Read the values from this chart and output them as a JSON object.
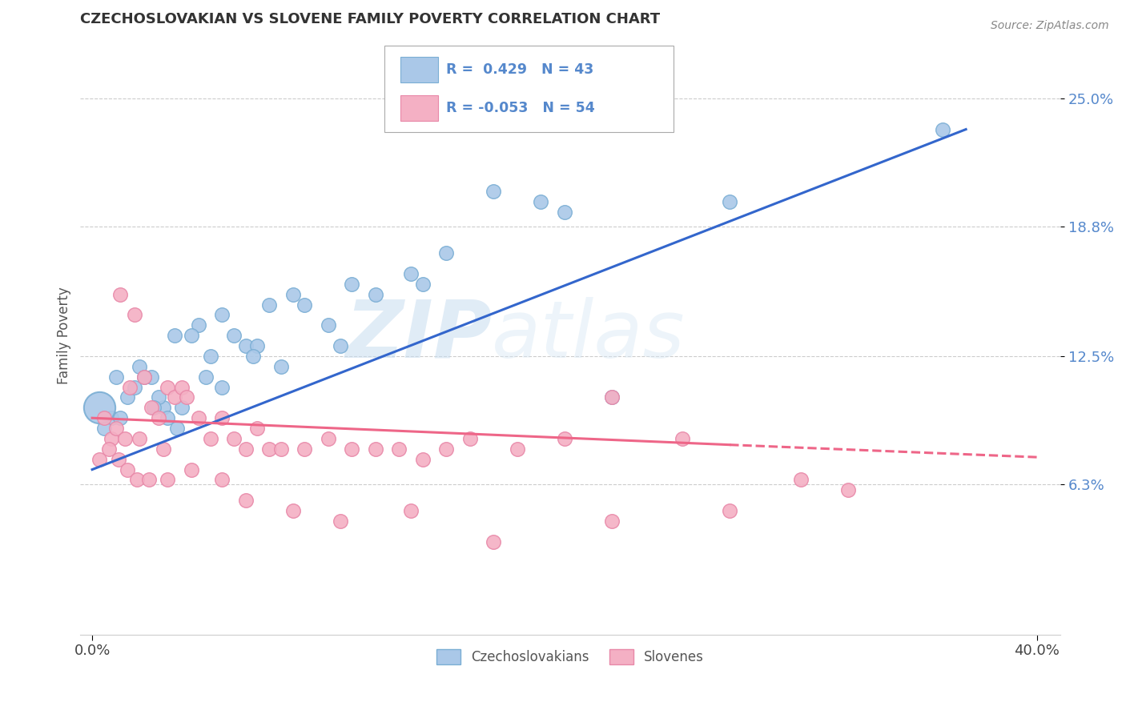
{
  "title": "CZECHOSLOVAKIAN VS SLOVENE FAMILY POVERTY CORRELATION CHART",
  "source": "Source: ZipAtlas.com",
  "ylabel": "Family Poverty",
  "xlim": [
    -0.5,
    41.0
  ],
  "ylim": [
    -1.0,
    28.0
  ],
  "yticks": [
    6.3,
    12.5,
    18.8,
    25.0
  ],
  "ytick_labels": [
    "6.3%",
    "12.5%",
    "18.8%",
    "25.0%"
  ],
  "xticks": [
    0.0,
    40.0
  ],
  "xtick_labels": [
    "0.0%",
    "40.0%"
  ],
  "blue_color": "#aac8e8",
  "blue_edge": "#7aaed4",
  "pink_color": "#f4b0c4",
  "pink_edge": "#e888a8",
  "trend_blue": "#3366cc",
  "trend_pink": "#ee6688",
  "tick_label_color": "#5588cc",
  "R_blue": "0.429",
  "N_blue": "43",
  "R_pink": "-0.053",
  "N_pink": "54",
  "watermark_zip": "ZIP",
  "watermark_atlas": "atlas",
  "legend_label_blue": "Czechoslovakians",
  "legend_label_pink": "Slovenes",
  "blue_scatter_x": [
    1.5,
    2.5,
    3.0,
    3.5,
    4.5,
    5.5,
    6.5,
    7.5,
    8.5,
    10.0,
    12.0,
    14.0,
    17.0,
    19.0,
    22.0,
    27.0,
    36.0,
    1.0,
    2.0,
    2.8,
    3.8,
    4.2,
    5.0,
    6.0,
    7.0,
    9.0,
    11.0,
    13.5,
    0.8,
    1.8,
    2.2,
    3.2,
    4.8,
    6.8,
    8.0,
    10.5,
    15.0,
    20.0,
    0.5,
    1.2,
    2.6,
    3.6,
    5.5
  ],
  "blue_scatter_y": [
    10.5,
    11.5,
    10.0,
    13.5,
    14.0,
    14.5,
    13.0,
    15.0,
    15.5,
    14.0,
    15.5,
    16.0,
    20.5,
    20.0,
    10.5,
    20.0,
    23.5,
    11.5,
    12.0,
    10.5,
    10.0,
    13.5,
    12.5,
    13.5,
    13.0,
    15.0,
    16.0,
    16.5,
    9.5,
    11.0,
    11.5,
    9.5,
    11.5,
    12.5,
    12.0,
    13.0,
    17.5,
    19.5,
    9.0,
    9.5,
    10.0,
    9.0,
    11.0
  ],
  "blue_large_x": [
    0.3
  ],
  "blue_large_y": [
    10.0
  ],
  "blue_large_size": 800,
  "pink_scatter_x": [
    0.5,
    0.8,
    1.0,
    1.2,
    1.4,
    1.6,
    1.8,
    2.0,
    2.2,
    2.5,
    2.8,
    3.0,
    3.2,
    3.5,
    3.8,
    4.0,
    4.5,
    5.0,
    5.5,
    6.0,
    6.5,
    7.0,
    7.5,
    8.0,
    9.0,
    10.0,
    11.0,
    12.0,
    13.0,
    14.0,
    15.0,
    16.0,
    18.0,
    20.0,
    22.0,
    25.0,
    27.0,
    30.0,
    32.0,
    0.3,
    0.7,
    1.1,
    1.5,
    1.9,
    2.4,
    3.2,
    4.2,
    5.5,
    6.5,
    8.5,
    10.5,
    13.5,
    17.0,
    22.0
  ],
  "pink_scatter_y": [
    9.5,
    8.5,
    9.0,
    15.5,
    8.5,
    11.0,
    14.5,
    8.5,
    11.5,
    10.0,
    9.5,
    8.0,
    11.0,
    10.5,
    11.0,
    10.5,
    9.5,
    8.5,
    9.5,
    8.5,
    8.0,
    9.0,
    8.0,
    8.0,
    8.0,
    8.5,
    8.0,
    8.0,
    8.0,
    7.5,
    8.0,
    8.5,
    8.0,
    8.5,
    10.5,
    8.5,
    5.0,
    6.5,
    6.0,
    7.5,
    8.0,
    7.5,
    7.0,
    6.5,
    6.5,
    6.5,
    7.0,
    6.5,
    5.5,
    5.0,
    4.5,
    5.0,
    3.5,
    4.5
  ],
  "trend_blue_x0": 0.0,
  "trend_blue_y0": 7.0,
  "trend_blue_x1": 37.0,
  "trend_blue_y1": 23.5,
  "trend_pink_solid_x0": 0.0,
  "trend_pink_solid_y0": 9.5,
  "trend_pink_solid_x1": 27.0,
  "trend_pink_solid_y1": 8.2,
  "trend_pink_dash_x0": 27.0,
  "trend_pink_dash_y0": 8.2,
  "trend_pink_dash_x1": 40.0,
  "trend_pink_dash_y1": 7.6,
  "background_color": "#ffffff",
  "grid_color": "#cccccc"
}
